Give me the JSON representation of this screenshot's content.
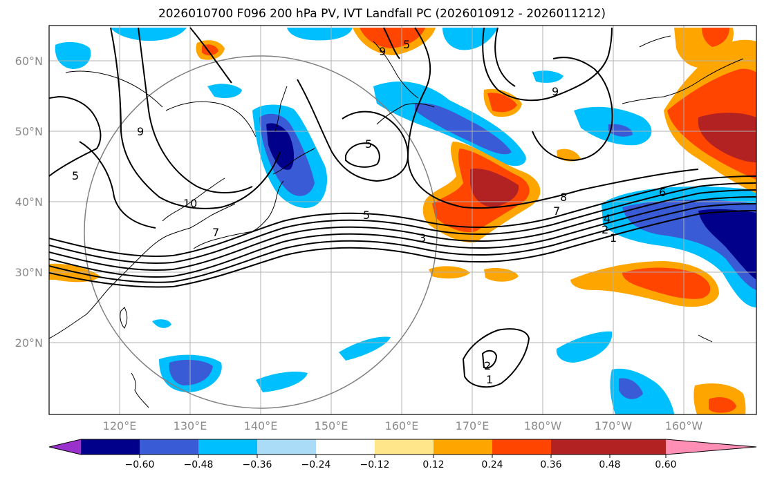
{
  "title": "2026010700 F096 200 hPa PV, IVT Landfall PC (2026010912 - 2026011212)",
  "lat_ticks": [
    "60°N",
    "50°N",
    "40°N",
    "30°N",
    "20°N"
  ],
  "lon_ticks": [
    "120°E",
    "130°E",
    "140°E",
    "150°E",
    "160°E",
    "170°E",
    "180°W",
    "170°W",
    "160°W"
  ],
  "colorbar": {
    "ticks": [
      "−0.60",
      "−0.48",
      "−0.36",
      "−0.24",
      "−0.12",
      "0.12",
      "0.24",
      "0.36",
      "0.48",
      "0.60"
    ],
    "colors": [
      "#9932cc",
      "#00008b",
      "#3a5bd6",
      "#00bfff",
      "#aadcf8",
      "#ffffff",
      "#ffe68a",
      "#ffa500",
      "#ff4500",
      "#b22222",
      "#ff8fb4"
    ]
  },
  "pv_contour_labels": [
    "9",
    "9",
    "5",
    "5",
    "10",
    "9",
    "5",
    "8",
    "7",
    "6",
    "4",
    "2",
    "1",
    "5",
    "3",
    "2",
    "1",
    "7"
  ]
}
